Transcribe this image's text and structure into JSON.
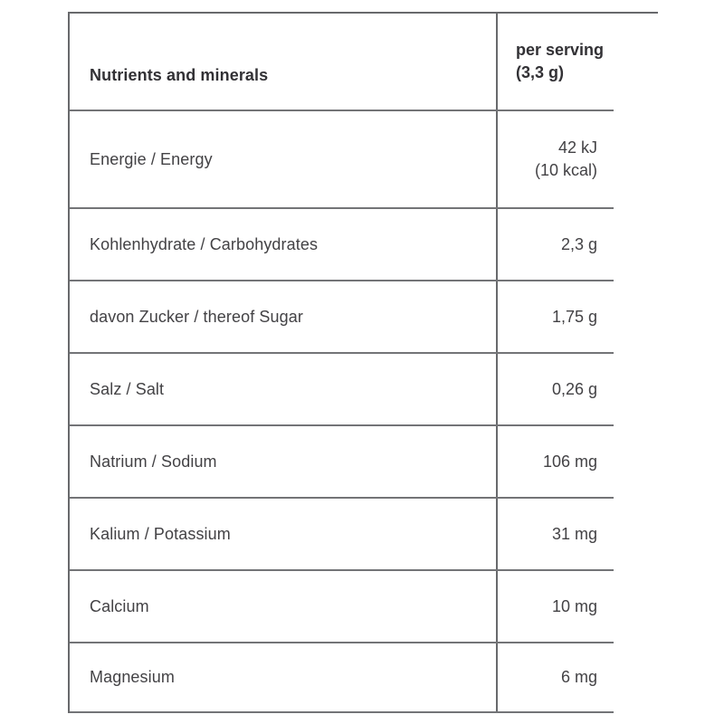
{
  "page": {
    "background": "#ffffff",
    "border_color": "#68696c",
    "text_color": "#434245",
    "header_text_color": "#323135"
  },
  "table": {
    "header": {
      "col1": "Nutrients and minerals",
      "col2_line1": "per serving",
      "col2_line2": "(3,3 g)"
    },
    "rows": [
      {
        "label": "Energie / Energy",
        "value_lines": [
          "42 kJ",
          "(10 kcal)"
        ]
      },
      {
        "label": "Kohlenhydrate / Carbohydrates",
        "value": "2,3 g"
      },
      {
        "label": "davon Zucker / thereof Sugar",
        "value": "1,75 g"
      },
      {
        "label": "Salz / Salt",
        "value": "0,26 g"
      },
      {
        "label": "Natrium / Sodium",
        "value": "106 mg"
      },
      {
        "label": "Kalium / Potassium",
        "value": "31 mg"
      },
      {
        "label": "Calcium",
        "value": "10 mg"
      },
      {
        "label": "Magnesium",
        "value": "6 mg"
      }
    ]
  }
}
